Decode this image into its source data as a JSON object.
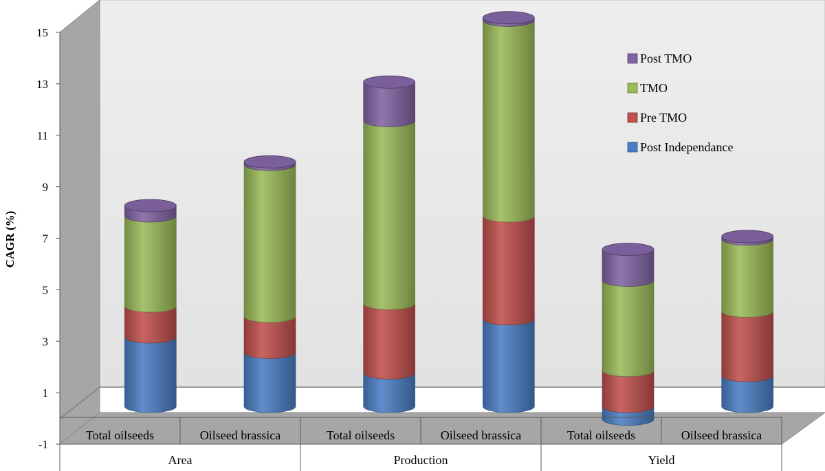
{
  "chart_data": {
    "type": "bar",
    "stacked": true,
    "style": "3d-cylinder",
    "ylabel": "CAGR (%)",
    "ylim": [
      -1,
      15
    ],
    "yticks": [
      -1,
      1,
      3,
      5,
      7,
      9,
      11,
      13,
      15
    ],
    "grid": false,
    "legend_position": "top-right",
    "groups": [
      {
        "label": "Area",
        "categories": [
          "Total oilseeds",
          "Oilseed brassica"
        ]
      },
      {
        "label": "Production",
        "categories": [
          "Total oilseeds",
          "Oilseed brassica"
        ]
      },
      {
        "label": "Yield",
        "categories": [
          "Total oilseeds",
          "Oilseed brassica"
        ]
      }
    ],
    "categories": [
      "Total oilseeds",
      "Oilseed brassica",
      "Total oilseeds",
      "Oilseed brassica",
      "Total oilseeds",
      "Oilseed brassica"
    ],
    "series": [
      {
        "name": "Post Independance",
        "color": "#4a7ec4",
        "values": [
          2.7,
          2.1,
          1.3,
          3.4,
          -0.5,
          1.2
        ]
      },
      {
        "name": "Pre TMO",
        "color": "#c0504d",
        "values": [
          1.2,
          1.4,
          2.7,
          4.0,
          1.4,
          2.5
        ]
      },
      {
        "name": "TMO",
        "color": "#9bbb59",
        "values": [
          3.5,
          5.9,
          7.1,
          7.6,
          3.5,
          2.8
        ]
      },
      {
        "name": "Post TMO",
        "color": "#8064a2",
        "values": [
          0.4,
          0.1,
          1.5,
          0.1,
          1.2,
          0.1
        ]
      }
    ]
  }
}
